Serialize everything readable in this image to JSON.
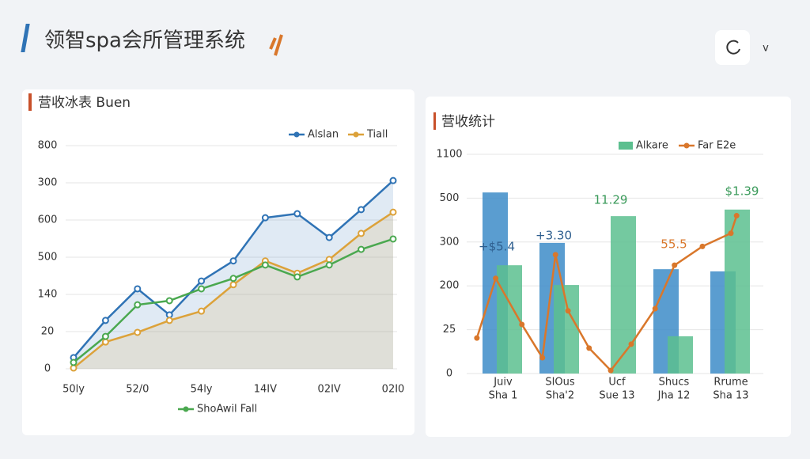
{
  "header": {
    "title": "领智spa会所管理系统",
    "menu": "v"
  },
  "chart_data": [
    {
      "type": "line",
      "title": "营收冰表 Buen",
      "ylim": [
        0,
        6
      ],
      "y_labels": [
        "800",
        "300",
        "600",
        "500",
        "140",
        "20",
        "0"
      ],
      "xlim": [
        0,
        10
      ],
      "categories": [
        "50ly",
        null,
        "52/0",
        null,
        "54ly",
        null,
        "14IV",
        null,
        "02IV",
        null,
        "02I0"
      ],
      "series": [
        {
          "name": "Alslan",
          "color": "#2f73b5",
          "area": true,
          "values": [
            0.3,
            1.3,
            2.15,
            1.45,
            2.36,
            2.9,
            4.06,
            4.17,
            3.53,
            4.28,
            5.06
          ]
        },
        {
          "name": "Tiall",
          "color": "#dca23a",
          "area": true,
          "values": [
            0.02,
            0.72,
            0.98,
            1.3,
            1.55,
            2.26,
            2.9,
            2.57,
            2.94,
            3.64,
            4.21
          ]
        },
        {
          "name": "ShoAwil Fall",
          "color": "#4aa84f",
          "legend": "bottom",
          "values": [
            0.17,
            0.87,
            1.72,
            1.83,
            2.15,
            2.43,
            2.79,
            2.47,
            2.79,
            3.21,
            3.49
          ]
        }
      ]
    },
    {
      "type": "bar",
      "title": "营收统计",
      "ylim": [
        0,
        5
      ],
      "y_labels": [
        "1100",
        "500",
        "300",
        "200",
        "25",
        "0"
      ],
      "xlim": [
        -0.5,
        4.5
      ],
      "categories": [
        [
          "Juiv",
          "Sha 1"
        ],
        [
          "SIOus",
          "Sha'2"
        ],
        [
          "Ucf",
          "Sue 13"
        ],
        [
          "Shucs",
          "Jha 12"
        ],
        [
          "Rrume",
          "Sha 13"
        ]
      ],
      "series": [
        {
          "color": "#3d8cc8",
          "values": [
            4.13,
            2.98,
            null,
            2.38,
            2.33
          ]
        },
        {
          "name": "Alkare",
          "color": "#5cbf8f",
          "values": [
            2.47,
            2.02,
            3.59,
            0.85,
            3.74
          ]
        },
        {
          "name": "Far E2e",
          "type": "line",
          "color": "#d9772b",
          "x": [
            -0.46,
            -0.13,
            0.33,
            0.69,
            0.92,
            1.14,
            1.51,
            1.89,
            2.25,
            2.67,
            3.01,
            3.5,
            4.0,
            4.1
          ],
          "values": [
            0.81,
            2.17,
            1.12,
            0.36,
            2.71,
            1.43,
            0.58,
            0.07,
            0.67,
            1.48,
            2.47,
            2.9,
            3.2,
            3.6
          ]
        }
      ],
      "annotations": [
        {
          "text": "+$5.4",
          "color": "#2f5f8f"
        },
        {
          "text": "+3.30",
          "color": "#2f5f8f"
        },
        {
          "text": "11.29",
          "color": "#3a9a5a"
        },
        {
          "text": "55.5",
          "color": "#d9772b"
        },
        {
          "text": "$1.39",
          "color": "#3a9a5a"
        }
      ]
    }
  ]
}
